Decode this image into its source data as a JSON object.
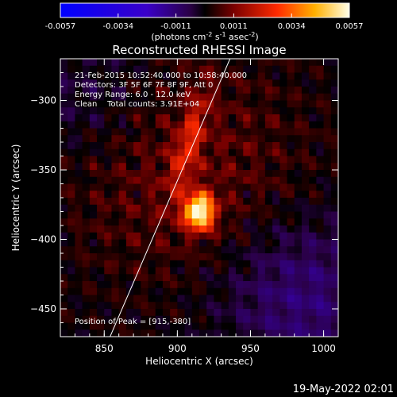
{
  "chart_data": {
    "type": "heatmap",
    "title": "Reconstructed RHESSI Image",
    "xlabel": "Heliocentric X (arcsec)",
    "ylabel": "Heliocentric Y (arcsec)",
    "xlim": [
      820,
      1010
    ],
    "ylim": [
      -470,
      -270
    ],
    "xticks": [
      850,
      900,
      950,
      1000
    ],
    "yticks": [
      -300,
      -350,
      -400,
      -450
    ],
    "colorbar": {
      "min": -0.0057,
      "max": 0.0057,
      "ticks": [
        "-0.0057",
        "-0.0034",
        "-0.0011",
        "0.0011",
        "0.0034",
        "0.0057"
      ],
      "unit_prefix": "(photons cm",
      "unit_sup1": "-2",
      "unit_mid": " s",
      "unit_sup2": "-1",
      "unit_mid2": " asec",
      "unit_sup3": "-2",
      "unit_suffix": ")"
    },
    "sources": [
      {
        "x": 915,
        "y": -380,
        "peak": 0.0057
      },
      {
        "x": 908,
        "y": -330,
        "peak": 0.0034
      }
    ],
    "peak_position": [
      915,
      -380
    ],
    "limb_line": [
      [
        854,
        -470
      ],
      [
        936,
        -270
      ]
    ]
  },
  "annotations": {
    "time_range": "21-Feb-2015 10:52:40.000 to 10:58:40.000",
    "detectors": "Detectors: 3F 5F 6F 7F 8F 9F, Att 0",
    "energy": "Energy Range: 6.0 - 12.0 keV",
    "clean": "Clean    Total counts: 3.91E+04",
    "peak": "Position of Peak = [915,-380]"
  },
  "footer": {
    "date": "19-May-2022 02:01"
  },
  "colors": {
    "background": "#000000",
    "axis": "#ffffff"
  }
}
